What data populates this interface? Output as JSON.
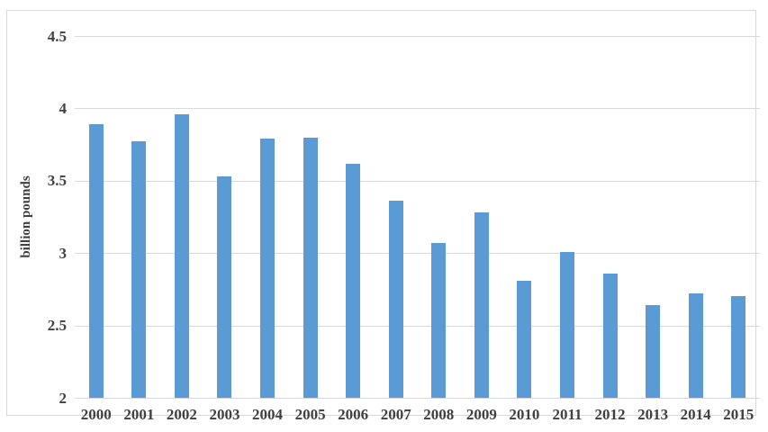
{
  "chart_data": {
    "type": "bar",
    "title": "",
    "xlabel": "",
    "ylabel": "billion pounds",
    "categories": [
      "2000",
      "2001",
      "2002",
      "2003",
      "2004",
      "2005",
      "2006",
      "2007",
      "2008",
      "2009",
      "2010",
      "2011",
      "2012",
      "2013",
      "2014",
      "2015"
    ],
    "values": [
      3.89,
      3.77,
      3.96,
      3.53,
      3.79,
      3.8,
      3.62,
      3.36,
      3.07,
      3.28,
      2.81,
      3.01,
      2.86,
      2.64,
      2.72,
      2.7
    ],
    "ylim": [
      2,
      4.5
    ],
    "yticks": [
      {
        "label": "4.5",
        "value": 4.5
      },
      {
        "label": "4",
        "value": 4
      },
      {
        "label": "3.5",
        "value": 3.5
      },
      {
        "label": "3",
        "value": 3
      },
      {
        "label": "2.5",
        "value": 2.5
      },
      {
        "label": "2",
        "value": 2
      }
    ],
    "grid": "horizontal",
    "legend": "none",
    "colors": {
      "bar": "#5b9bd5",
      "text": "#404040",
      "gridline": "#d9d9d9",
      "frame": "#d9d9d9",
      "background": "#ffffff"
    }
  }
}
